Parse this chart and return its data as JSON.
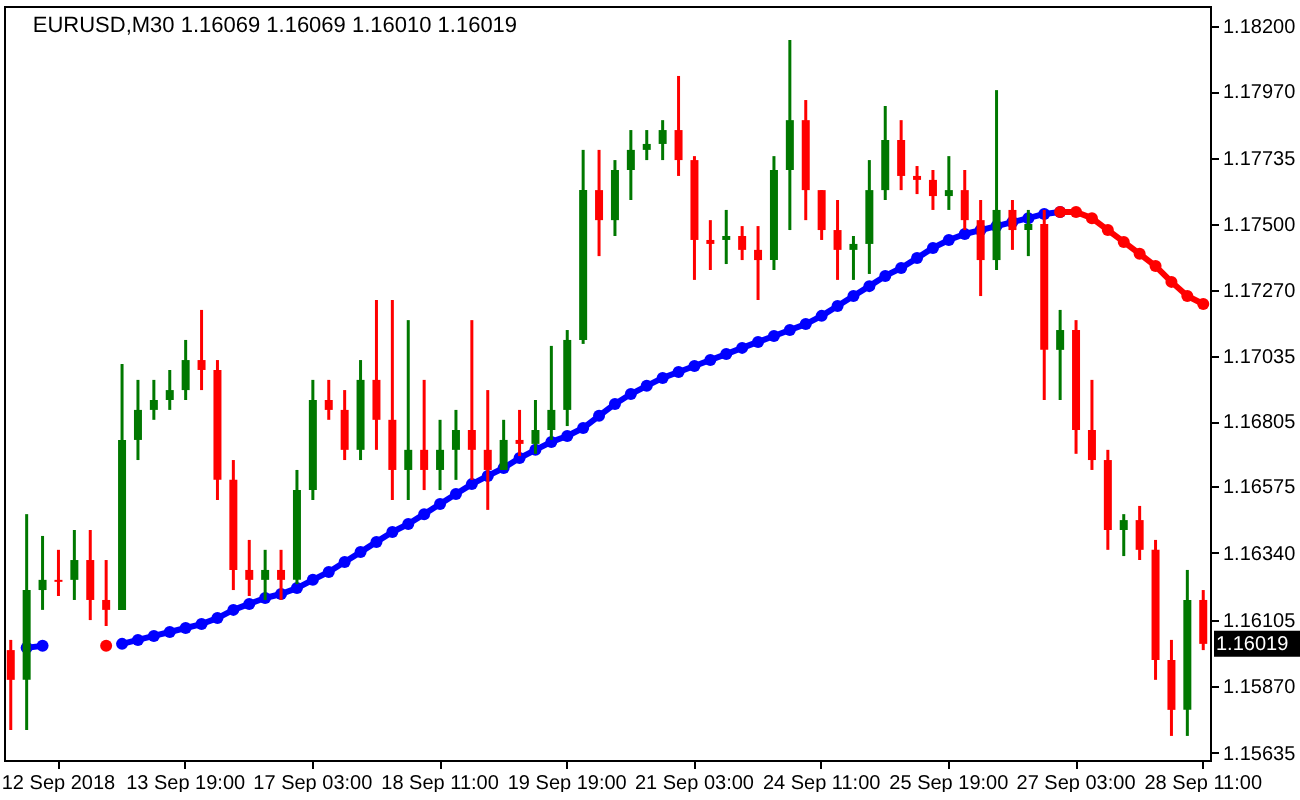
{
  "chart_data": {
    "type": "candlestick",
    "title": "EURUSD,M30  1.16069 1.16069 1.16010 1.16019",
    "categories": [
      null,
      null,
      null,
      "12 Sep 2018",
      null,
      null,
      null,
      null,
      null,
      null,
      null,
      "13 Sep 19:00",
      null,
      null,
      null,
      null,
      null,
      null,
      null,
      "17 Sep 03:00",
      null,
      null,
      null,
      null,
      null,
      null,
      null,
      "18 Sep 11:00",
      null,
      null,
      null,
      null,
      null,
      null,
      null,
      "19 Sep 19:00",
      null,
      null,
      null,
      null,
      null,
      null,
      null,
      "21 Sep 03:00",
      null,
      null,
      null,
      null,
      null,
      null,
      null,
      "24 Sep 11:00",
      null,
      null,
      null,
      null,
      null,
      null,
      null,
      "25 Sep 19:00",
      null,
      null,
      null,
      null,
      null,
      null,
      null,
      "27 Sep 03:00",
      null,
      null,
      null,
      null,
      null,
      null,
      null,
      "28 Sep 11:00"
    ],
    "ohlc": [
      [
        1.15997,
        1.16033,
        1.15715,
        1.15892
      ],
      [
        1.15892,
        1.16477,
        1.15715,
        1.16209
      ],
      [
        1.16209,
        1.164,
        1.16139,
        1.16245
      ],
      [
        1.16245,
        1.16351,
        1.16188,
        1.16238
      ],
      [
        1.16245,
        1.16421,
        1.16174,
        1.16315
      ],
      [
        1.16315,
        1.16421,
        1.16103,
        1.16174
      ],
      [
        1.16174,
        1.16315,
        1.16082,
        1.16139
      ],
      [
        1.16139,
        1.17007,
        1.16139,
        1.16739
      ],
      [
        1.16739,
        1.16951,
        1.16668,
        1.16845
      ],
      [
        1.16845,
        1.16951,
        1.1681,
        1.1688
      ],
      [
        1.1688,
        1.16986,
        1.16845,
        1.16915
      ],
      [
        1.16915,
        1.17092,
        1.1688,
        1.17021
      ],
      [
        1.17021,
        1.17198,
        1.16915,
        1.16986
      ],
      [
        1.16986,
        1.17021,
        1.16527,
        1.16598
      ],
      [
        1.16598,
        1.16668,
        1.16209,
        1.1628
      ],
      [
        1.1628,
        1.16386,
        1.16188,
        1.16245
      ],
      [
        1.16245,
        1.16351,
        1.16174,
        1.1628
      ],
      [
        1.1628,
        1.16351,
        1.16174,
        1.16245
      ],
      [
        1.16245,
        1.16633,
        1.1623,
        1.16562
      ],
      [
        1.16562,
        1.16951,
        1.16527,
        1.1688
      ],
      [
        1.1688,
        1.16951,
        1.1681,
        1.16845
      ],
      [
        1.16845,
        1.16915,
        1.16668,
        1.16704
      ],
      [
        1.16704,
        1.17021,
        1.16668,
        1.16951
      ],
      [
        1.16951,
        1.17233,
        1.16704,
        1.1681
      ],
      [
        1.1681,
        1.17233,
        1.16527,
        1.16633
      ],
      [
        1.16633,
        1.17162,
        1.16527,
        1.16704
      ],
      [
        1.16704,
        1.16951,
        1.16562,
        1.16633
      ],
      [
        1.16633,
        1.1681,
        1.16562,
        1.16704
      ],
      [
        1.16704,
        1.16845,
        1.16598,
        1.16774
      ],
      [
        1.16774,
        1.17162,
        1.16598,
        1.16704
      ],
      [
        1.16704,
        1.16915,
        1.16492,
        1.16633
      ],
      [
        1.16633,
        1.1681,
        1.16633,
        1.16739
      ],
      [
        1.16739,
        1.16845,
        1.16682,
        1.16725
      ],
      [
        1.16725,
        1.1688,
        1.1669,
        1.16774
      ],
      [
        1.16774,
        1.17071,
        1.16739,
        1.16845
      ],
      [
        1.16845,
        1.17127,
        1.16788,
        1.17092
      ],
      [
        1.17092,
        1.17763,
        1.17078,
        1.17621
      ],
      [
        1.17621,
        1.17763,
        1.17388,
        1.17515
      ],
      [
        1.17515,
        1.17727,
        1.17459,
        1.17692
      ],
      [
        1.17692,
        1.17833,
        1.17586,
        1.17763
      ],
      [
        1.17763,
        1.17833,
        1.17727,
        1.17784
      ],
      [
        1.17784,
        1.17868,
        1.17727,
        1.17833
      ],
      [
        1.17833,
        1.18024,
        1.17671,
        1.17727
      ],
      [
        1.17727,
        1.17741,
        1.17304,
        1.17445
      ],
      [
        1.17445,
        1.17515,
        1.17339,
        1.17431
      ],
      [
        1.17445,
        1.17551,
        1.1736,
        1.17459
      ],
      [
        1.17459,
        1.17494,
        1.17374,
        1.1741
      ],
      [
        1.1741,
        1.17494,
        1.17233,
        1.17374
      ],
      [
        1.17374,
        1.17741,
        1.17339,
        1.17692
      ],
      [
        1.17692,
        1.18151,
        1.1748,
        1.17868
      ],
      [
        1.17868,
        1.17939,
        1.17515,
        1.17621
      ],
      [
        1.17621,
        1.17621,
        1.17445,
        1.1748
      ],
      [
        1.1748,
        1.17586,
        1.17304,
        1.1741
      ],
      [
        1.1741,
        1.17459,
        1.17304,
        1.17431
      ],
      [
        1.17431,
        1.17727,
        1.17325,
        1.17621
      ],
      [
        1.17621,
        1.17918,
        1.17586,
        1.17798
      ],
      [
        1.17798,
        1.17868,
        1.17621,
        1.17671
      ],
      [
        1.17671,
        1.17706,
        1.17607,
        1.17657
      ],
      [
        1.17657,
        1.17692,
        1.17551,
        1.176
      ],
      [
        1.176,
        1.17741,
        1.17551,
        1.17621
      ],
      [
        1.17621,
        1.17692,
        1.1748,
        1.17515
      ],
      [
        1.17515,
        1.17586,
        1.17247,
        1.17374
      ],
      [
        1.17374,
        1.17974,
        1.17339,
        1.17551
      ],
      [
        1.17551,
        1.17586,
        1.1741,
        1.1748
      ],
      [
        1.1748,
        1.17551,
        1.17388,
        1.17501
      ],
      [
        1.17501,
        1.17551,
        1.1688,
        1.17057
      ],
      [
        1.17057,
        1.17198,
        1.1688,
        1.17127
      ],
      [
        1.17127,
        1.17162,
        1.1669,
        1.16774
      ],
      [
        1.16774,
        1.16951,
        1.16633,
        1.16668
      ],
      [
        1.16668,
        1.16704,
        1.16351,
        1.16421
      ],
      [
        1.16421,
        1.16477,
        1.16329,
        1.16456
      ],
      [
        1.16456,
        1.16506,
        1.16315,
        1.16351
      ],
      [
        1.16351,
        1.16386,
        1.15892,
        1.15962
      ],
      [
        1.15962,
        1.16033,
        1.15694,
        1.15786
      ],
      [
        1.15786,
        1.1628,
        1.15694,
        1.16174
      ],
      [
        1.16174,
        1.16209,
        1.15997,
        1.16019
      ]
    ],
    "series": [
      {
        "type": "line",
        "color": "#0000ff",
        "values": [
          null,
          1.16005,
          1.16012,
          null,
          null,
          null,
          null,
          1.16019,
          1.16033,
          1.16047,
          1.16061,
          1.16075,
          1.16089,
          1.1611,
          1.16139,
          1.1616,
          1.16181,
          1.16195,
          1.16216,
          1.16245,
          1.16273,
          1.16308,
          1.16343,
          1.16379,
          1.16414,
          1.16442,
          1.16477,
          1.16513,
          1.16548,
          1.16583,
          1.16612,
          1.1664,
          1.16675,
          1.16704,
          1.16732,
          1.16753,
          1.16781,
          1.16824,
          1.16866,
          1.16901,
          1.1693,
          1.16958,
          1.16979,
          1.17,
          1.17021,
          1.17042,
          1.17064,
          1.17085,
          1.17106,
          1.17127,
          1.17148,
          1.17177,
          1.17212,
          1.17247,
          1.17282,
          1.17318,
          1.17346,
          1.17381,
          1.17417,
          1.17445,
          1.17466,
          1.1748,
          1.17494,
          1.17508,
          1.17522,
          1.17537,
          1.17544,
          null,
          null,
          null,
          null,
          null,
          null,
          null,
          null,
          null
        ]
      },
      {
        "type": "line",
        "color": "#ff0000",
        "values": [
          null,
          null,
          null,
          null,
          null,
          null,
          1.16012,
          null,
          null,
          null,
          null,
          null,
          null,
          null,
          null,
          null,
          null,
          null,
          null,
          null,
          null,
          null,
          null,
          null,
          null,
          null,
          null,
          null,
          null,
          null,
          null,
          null,
          null,
          null,
          null,
          null,
          null,
          null,
          null,
          null,
          null,
          null,
          null,
          null,
          null,
          null,
          null,
          null,
          null,
          null,
          null,
          null,
          null,
          null,
          null,
          null,
          null,
          null,
          null,
          null,
          null,
          null,
          null,
          null,
          null,
          null,
          1.17544,
          1.17544,
          1.17522,
          1.1748,
          1.17438,
          1.17396,
          1.17353,
          1.17297,
          1.17247,
          1.17219
        ]
      }
    ],
    "ylim": [
      1.15609,
      1.18271
    ],
    "yticks": [
      {
        "value": 1.15635,
        "label": "1.15635"
      },
      {
        "value": 1.1587,
        "label": "1.15870"
      },
      {
        "value": 1.16105,
        "label": "1.16105"
      },
      {
        "value": 1.1634,
        "label": "1.16340"
      },
      {
        "value": 1.16575,
        "label": "1.16575"
      },
      {
        "value": 1.16805,
        "label": "1.16805"
      },
      {
        "value": 1.17035,
        "label": "1.17035"
      },
      {
        "value": 1.1727,
        "label": "1.17270"
      },
      {
        "value": 1.175,
        "label": "1.17500"
      },
      {
        "value": 1.17735,
        "label": "1.17735"
      },
      {
        "value": 1.1797,
        "label": "1.17970"
      },
      {
        "value": 1.182,
        "label": "1.18200"
      }
    ],
    "marker": "circle",
    "grid": false,
    "annotations": [
      "1.16019"
    ]
  }
}
